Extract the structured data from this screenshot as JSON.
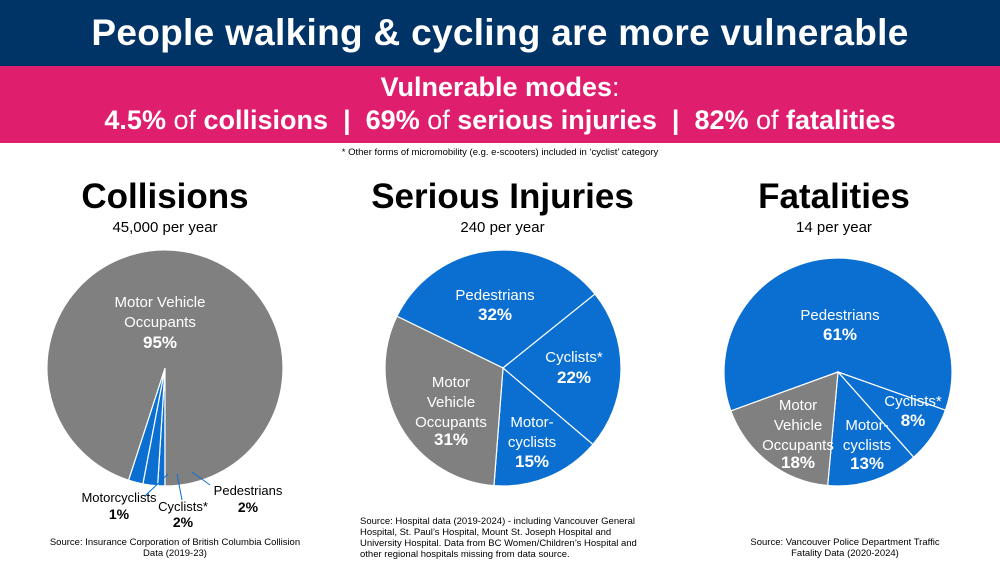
{
  "title": "People walking & cycling are more vulnerable",
  "banner": {
    "heading": "Vulnerable modes",
    "heading_suffix": ":",
    "stat1_value": "4.5%",
    "stat1_of": "of",
    "stat1_label": "collisions",
    "sep": "|",
    "stat2_value": "69%",
    "stat2_of": "of",
    "stat2_label": "serious injuries",
    "stat3_value": "82%",
    "stat3_of": "of",
    "stat3_label": "fatalities"
  },
  "footnote": "* Other forms of micromobility (e.g. e-scooters) included in ‘cyclist’ category",
  "colors": {
    "grey": "#808080",
    "blue": "#0a6fd1",
    "title_bg": "#003366",
    "banner_bg": "#e01e6e"
  },
  "chart_data": [
    {
      "type": "pie",
      "title": "Collisions",
      "subtitle": "45,000 per year",
      "slices": [
        {
          "label": "Motor Vehicle Occupants",
          "value": 95,
          "display": "95%",
          "color": "#808080"
        },
        {
          "label": "Motorcyclists",
          "value": 1,
          "display": "1%",
          "color": "#0a6fd1"
        },
        {
          "label": "Cyclists*",
          "value": 2,
          "display": "2%",
          "color": "#0a6fd1"
        },
        {
          "label": "Pedestrians",
          "value": 2,
          "display": "2%",
          "color": "#0a6fd1"
        }
      ],
      "source": "Source:  Insurance Corporation of British Columbia Collision Data (2019-23)"
    },
    {
      "type": "pie",
      "title": "Serious Injuries",
      "subtitle": "240 per year",
      "slices": [
        {
          "label": "Pedestrians",
          "value": 32,
          "display": "32%",
          "color": "#0a6fd1"
        },
        {
          "label": "Cyclists*",
          "value": 22,
          "display": "22%",
          "color": "#0a6fd1"
        },
        {
          "label": "Motor-cyclists",
          "value": 15,
          "display": "15%",
          "color": "#0a6fd1"
        },
        {
          "label": "Motor Vehicle Occupants",
          "value": 31,
          "display": "31%",
          "color": "#808080"
        }
      ],
      "source": "Source:  Hospital data (2019-2024) - including Vancouver General Hospital, St. Paul’s Hospital, Mount St. Joseph Hospital and University Hospital. Data from BC Women/Children’s Hospital and other regional hospitals missing from data source."
    },
    {
      "type": "pie",
      "title": "Fatalities",
      "subtitle": "14 per year",
      "slices": [
        {
          "label": "Pedestrians",
          "value": 61,
          "display": "61%",
          "color": "#0a6fd1"
        },
        {
          "label": "Cyclists*",
          "value": 8,
          "display": "8%",
          "color": "#0a6fd1"
        },
        {
          "label": "Motor-cyclists",
          "value": 13,
          "display": "13%",
          "color": "#0a6fd1"
        },
        {
          "label": "Motor Vehicle Occupants",
          "value": 18,
          "display": "18%",
          "color": "#808080"
        }
      ],
      "source": "Source:  Vancouver Police Department Traffic Fatality Data (2020-2024)"
    }
  ]
}
